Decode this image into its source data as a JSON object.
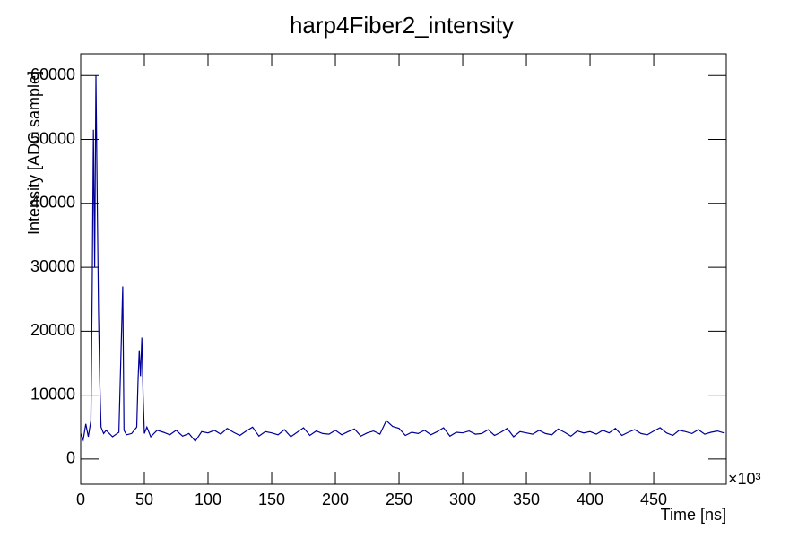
{
  "chart_data": {
    "type": "line",
    "title": "harp4Fiber2_intensity",
    "x_label": "Time [ns]",
    "y_label": "Intensity [ADC sample]",
    "x_multiplier": "×10³",
    "xlim": [
      0,
      507
    ],
    "ylim": [
      -3940,
      63400
    ],
    "xticks": [
      0,
      50,
      100,
      150,
      200,
      250,
      300,
      350,
      400,
      450
    ],
    "yticks": [
      0,
      10000,
      20000,
      30000,
      40000,
      50000,
      60000
    ],
    "x": [
      0,
      2,
      4,
      6,
      8,
      9,
      10,
      11,
      12,
      13,
      14,
      15,
      16,
      18,
      20,
      25,
      30,
      32,
      33,
      34,
      36,
      40,
      44,
      45,
      46,
      47,
      48,
      49,
      50,
      52,
      55,
      60,
      65,
      70,
      75,
      80,
      85,
      90,
      95,
      100,
      105,
      110,
      115,
      120,
      125,
      130,
      135,
      140,
      145,
      150,
      155,
      160,
      165,
      170,
      175,
      180,
      185,
      190,
      195,
      200,
      205,
      210,
      215,
      220,
      225,
      230,
      235,
      240,
      245,
      250,
      255,
      260,
      265,
      270,
      275,
      280,
      285,
      290,
      295,
      300,
      305,
      310,
      315,
      320,
      325,
      330,
      335,
      340,
      345,
      350,
      355,
      360,
      365,
      370,
      375,
      380,
      385,
      390,
      395,
      400,
      405,
      410,
      415,
      420,
      425,
      430,
      435,
      440,
      445,
      450,
      455,
      460,
      465,
      470,
      475,
      480,
      485,
      490,
      495,
      500,
      505
    ],
    "series": [
      {
        "name": "harp4Fiber2_intensity",
        "color": "#000099",
        "values": [
          4000,
          3000,
          5500,
          3500,
          6000,
          26000,
          51500,
          30000,
          60000,
          40000,
          23000,
          12000,
          5000,
          4000,
          4500,
          3500,
          4200,
          19000,
          27000,
          4500,
          3800,
          4000,
          5000,
          12000,
          17000,
          13000,
          19000,
          10000,
          4000,
          5000,
          3500,
          4500,
          4200,
          3800,
          4500,
          3600,
          4000,
          2800,
          4300,
          4100,
          4500,
          3900,
          4800,
          4200,
          3700,
          4400,
          5000,
          3600,
          4300,
          4100,
          3800,
          4600,
          3500,
          4200,
          4900,
          3700,
          4400,
          4000,
          3900,
          4500,
          3800,
          4300,
          4700,
          3600,
          4100,
          4400,
          3900,
          6000,
          5100,
          4800,
          3700,
          4200,
          4000,
          4500,
          3800,
          4300,
          4900,
          3600,
          4200,
          4100,
          4400,
          3900,
          4000,
          4600,
          3700,
          4200,
          4800,
          3500,
          4300,
          4100,
          3900,
          4500,
          4000,
          3800,
          4700,
          4200,
          3600,
          4400,
          4100,
          4300,
          3900,
          4500,
          4100,
          4800,
          3700,
          4200,
          4600,
          4000,
          3800,
          4400,
          4900,
          4100,
          3700,
          4500,
          4300,
          4000,
          4600,
          3900,
          4200,
          4400,
          4100
        ]
      }
    ]
  }
}
